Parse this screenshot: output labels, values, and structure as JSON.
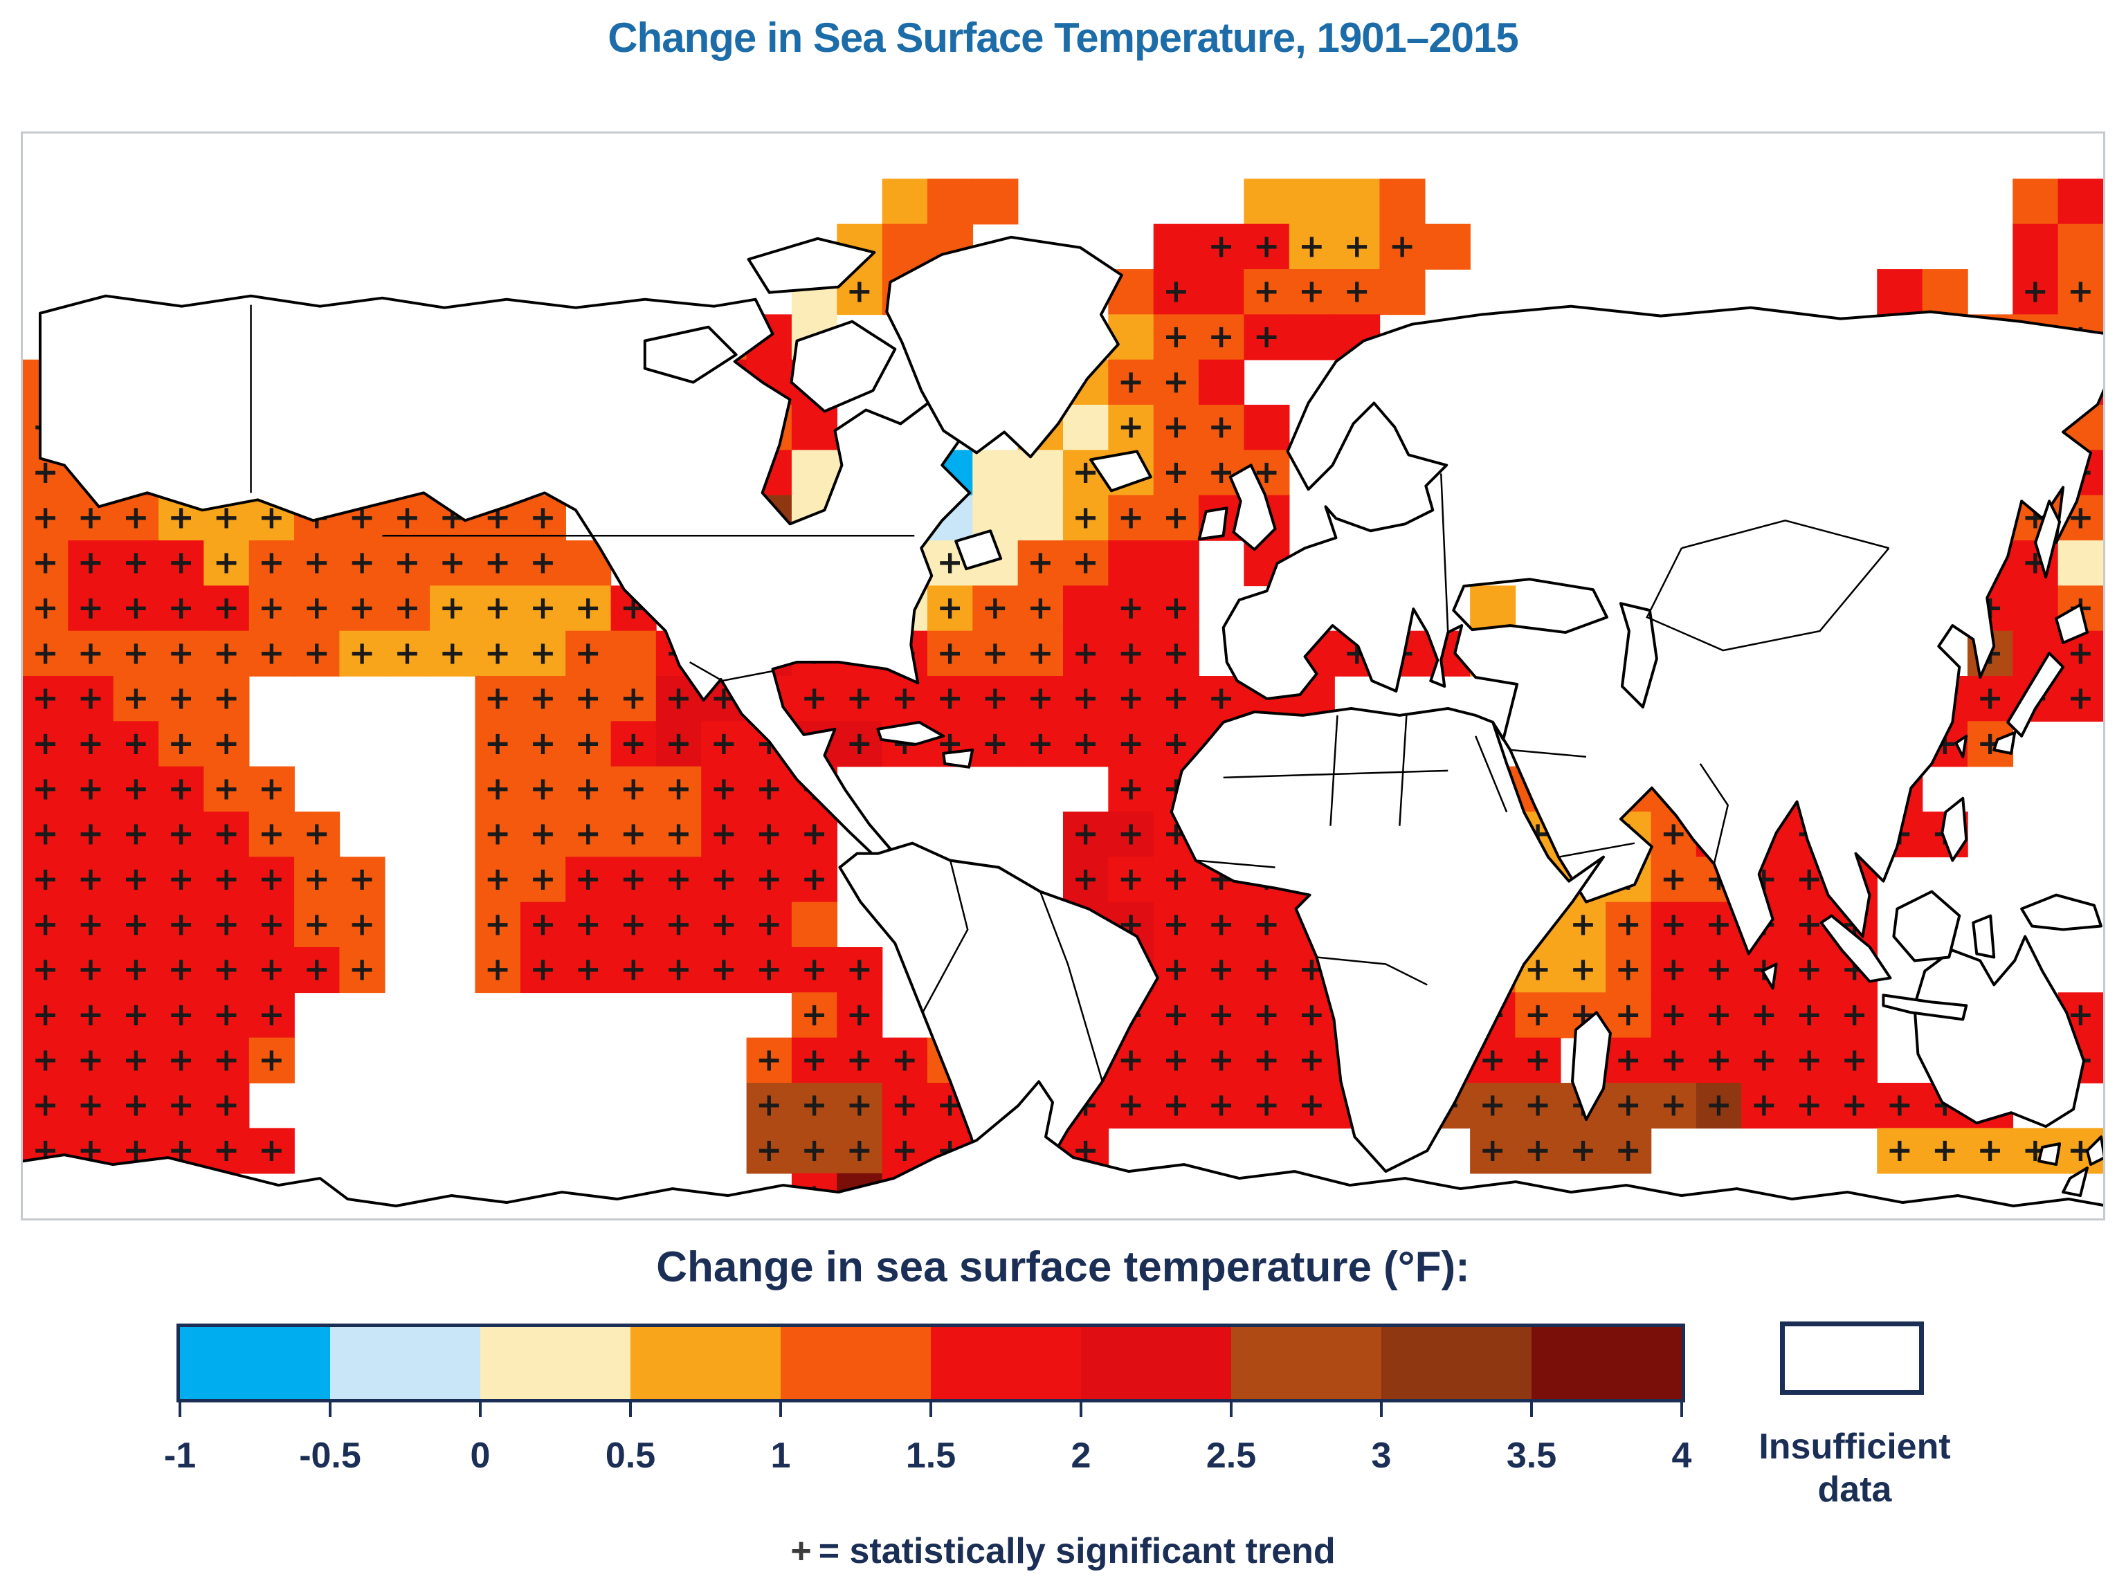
{
  "title": {
    "text": "Change in Sea Surface Temperature, 1901–2015",
    "color": "#1B6CA8"
  },
  "map": {
    "background": "#FFFFFF",
    "frame_color": "#C6CACE",
    "plus_symbol": "+",
    "plus_color": "#1A1A1A",
    "land_fill": "#FFFFFF",
    "land_stroke": "#000000",
    "grid": {
      "cols": 46,
      "rows": 24,
      "encoding": "digit 0-9 = temperature bin with plus mark (statistically significant); letters a-j = bin 0-9 without plus; dot = no data",
      "rows_data": [
        "..............................................",
        "...................dee.....ddde.............ef",
        "..................dee....f55334e............fe",
        ".................c3e....e5f444e..........fe.54",
        "...............efc......d445ff.............e44",
        "ee4.9..........6ff....dd44f..............fe.45",
        "444eff.........fef....3c344f...............44e",
        "4455555444......fccaacc33444............3344e5",
        "444333444444...98cbbbcc344ff..........43344444",
        "455534444444e..86bb22c44ff.f...............55c",
        "45555444433335..422c344f55......d..........5f4",
        "4444444333334e556555444555.ff55fd..........7f5",
        "55444.....44446655555555555ff....5...555555555",
        "55544.....44456556655555555577...5..55555554..",
        "555544....44444555......555577544444455555....",
        "5555544...44444555.....66555754433334555555...",
        "55555544..44555555.....655555543333344555.....",
        "55555544..4555555e.....665555554333455555.....",
        "55555554..455555555....665555555433455555.....",
        "555555...........45...5555555555544455555....5",
        "555554..........4555e.555555555555.555555....5",
        "55555...........7775555555555557777778555555..",
        "555555..........77755555........7777.....33333",
        "333c.............5954........................."
      ]
    },
    "land_paths": [
      "M 25 260 L 120 235 L 230 250 L 330 235 L 430 250 L 520 238 L 610 252 L 700 240 L 800 252 L 900 240 L 1000 250 L 1060 240 L 1085 290 L 1030 330 L 1070 360 L 1110 385 L 1095 450 L 1070 520 L 1110 565 L 1160 545 L 1185 480 L 1175 430 L 1220 400 L 1270 420 L 1310 390 L 1365 430 L 1330 480 L 1370 520 L 1330 560 L 1300 600 L 1315 640 L 1290 690 L 1285 740 L 1295 795 L 1250 775 L 1180 765 L 1120 765 L 1085 775 L 1100 830 L 1130 870 L 1175 862 L 1160 900 L 1190 950 L 1225 1000 L 1255 1035 L 1235 1048 L 1195 1010 L 1155 970 L 1120 935 L 1080 880 L 1040 840 L 1010 790 L 985 820 L 950 770 L 930 720 L 870 660 L 835 600 L 800 545 L 755 520 L 700 540 L 640 560 L 580 520 L 500 540 L 420 560 L 340 530 L 260 545 L 180 520 L 110 540 L 60 480 L 25 470 Z",
      "M 1255 215 L 1330 175 L 1430 150 L 1530 165 L 1590 205 L 1560 262 L 1585 305 L 1540 355 L 1498 420 L 1458 468 L 1420 432 L 1380 462 L 1332 430 L 1300 372 L 1272 302 L 1250 258 Z",
      "M 1050 182 L 1150 152 L 1232 172 L 1180 222 L 1080 230 Z",
      "M 900 300 L 992 280 L 1032 320 L 970 360 L 900 340 Z",
      "M 1120 300 L 1200 272 L 1262 312 L 1230 372 L 1160 402 L 1112 360 Z",
      "M 1545 472 L 1612 460 L 1632 497 L 1575 517 Z",
      "M 1747 497 L 1777 480 L 1797 522 L 1812 572 L 1782 602 L 1752 577 L 1762 532 Z",
      "M 1712 547 L 1742 542 L 1737 582 L 1702 587 Z",
      "M 1350 590 L 1400 575 L 1415 615 L 1365 630 Z",
      "M 1237 862 L 1297 852 L 1332 872 L 1292 884 L 1242 877 Z",
      "M 1332 897 L 1374 892 L 1369 917 L 1334 912 Z",
      "M 1757 792 L 1800 818 L 1848 812 L 1872 782 L 1855 757 L 1895 712 L 1932 742 L 1952 792 L 1987 807 L 1997 762 L 2012 688 L 2032 722 L 2047 762 L 2037 792 L 2057 800 L 2052 762 L 2062 722 L 2082 712 L 2072 752 L 2102 787 L 2162 797 L 2152 837 L 2142 877 L 2127 852 L 2152 892 L 2187 972 L 2222 1047 L 2262 1112 L 2332 1087 L 2357 1032 L 2312 992 L 2357 947 L 2392 987 L 2417 1022 L 2447 1057 L 2472 1122 L 2497 1187 L 2532 1137 L 2512 1072 L 2537 1012 L 2567 967 L 2582 1022 L 2612 1102 L 2662 1162 L 2672 1102 L 2652 1042 L 2692 1082 L 2712 1032 L 2732 947 L 2762 912 L 2792 852 L 2802 772 L 2772 742 L 2792 712 L 2822 732 L 2832 787 L 2852 742 L 2842 672 L 2872 612 L 2892 532 L 2922 557 L 2952 512 L 2942 592 L 2972 532 L 2992 462 L 2952 432 L 3002 392 L 3016 360 L 3016 290 L 2890 272 L 2760 258 L 2630 268 L 2500 252 L 2370 264 L 2240 250 L 2110 262 L 2010 276 L 1940 300 L 1900 330 L 1860 390 L 1830 460 L 1860 515 L 1895 480 L 1925 420 L 1955 390 L 1985 425 L 2005 465 L 2060 480 L 2030 510 L 2040 545 L 2000 565 L 1950 575 L 1900 557 L 1885 540 L 1900 585 L 1855 600 L 1815 622 L 1800 662 L 1760 675 L 1737 715 L 1742 765 Z M 2085 655 L 2180 645 L 2272 660 L 2292 700 L 2232 722 L 2152 712 L 2097 718 L 2070 690 Z M 2312 680 L 2354 690 L 2364 760 L 2344 830 L 2314 800 L 2324 720 Z",
      "M 2872 852 L 2902 802 L 2932 752 L 2952 772 L 2912 832 L 2892 872 Z",
      "M 2942 702 L 2977 682 L 2987 722 L 2952 737 Z",
      "M 2857 877 L 2882 867 L 2877 897 L 2852 892 Z",
      "M 2912 592 L 2932 532 L 2947 562 L 2927 642 Z",
      "M 2797 882 L 2812 872 L 2807 902 Z",
      "M 2517 1212 L 2537 1202 L 2532 1237 Z",
      "M 1737 852 L 1782 837 L 1852 842 L 1922 832 L 1992 842 L 2062 832 L 2102 842 L 2127 852 L 2147 912 L 2172 982 L 2207 1047 L 2237 1082 L 2287 1047 L 2242 1112 L 2172 1202 L 2122 1302 L 2072 1402 L 2032 1472 L 1972 1502 L 1927 1452 L 1907 1372 L 1897 1282 L 1872 1192 L 1842 1122 L 1862 1102 L 1812 1092 L 1752 1082 L 1697 1052 L 1662 982 L 1677 922 L 1712 882 Z",
      "M 2247 1297 L 2277 1272 L 2297 1302 L 2287 1382 L 2262 1427 L 2242 1372 Z",
      "M 1237 1042 L 1287 1027 L 1342 1052 L 1412 1062 L 1472 1097 L 1542 1122 L 1612 1162 L 1642 1222 L 1602 1292 L 1562 1372 L 1512 1442 L 1477 1502 L 1447 1472 L 1432 1512 L 1437 1532 L 1412 1547 L 1392 1522 L 1372 1452 L 1342 1372 L 1302 1272 L 1262 1172 L 1212 1112 L 1182 1062 L 1207 1042 Z",
      "M 2752 1212 L 2792 1182 L 2832 1197 L 2852 1232 L 2882 1197 L 2897 1162 L 2922 1212 L 2957 1272 L 2982 1342 L 2967 1412 L 2927 1437 L 2877 1417 L 2827 1432 L 2777 1402 L 2742 1332 L 2737 1262 Z",
      "M 2922 1467 L 2947 1462 L 2942 1492 L 2917 1487 Z",
      "M 2987 1472 L 3007 1452 L 3012 1482 L 2992 1492 Z",
      "M 2962 1512 L 2987 1497 L 2977 1537 L 2952 1532 Z",
      "M 2892 1122 L 2942 1102 L 2997 1117 L 3007 1147 L 2952 1152 L 2907 1147 Z",
      "M 2617 1132 L 2672 1177 L 2702 1222 L 2672 1227 L 2632 1182 L 2602 1142 Z",
      "M 2692 1247 L 2762 1257 L 2812 1262 L 2807 1282 L 2732 1272 L 2692 1262 Z",
      "M 2712 1122 L 2762 1097 L 2802 1132 L 2787 1192 L 2737 1197 L 2707 1162 Z",
      "M 2822 1142 L 2847 1132 L 2852 1192 L 2827 1187 Z",
      "M 2782 982 L 2807 962 L 2812 1022 L 2792 1052 L 2777 1012 Z",
      "M -6 1488 L 60 1478 L 130 1492 L 210 1482 L 290 1502 L 370 1522 L 430 1512 L 470 1542 L 540 1552 L 620 1537 L 700 1547 L 780 1532 L 860 1542 L 940 1527 L 1020 1537 L 1100 1522 L 1180 1532 L 1260 1512 L 1320 1482 L 1380 1457 L 1440 1407 L 1470 1372 L 1490 1402 L 1480 1452 L 1520 1482 L 1600 1502 L 1680 1492 L 1760 1512 L 1840 1502 L 1920 1522 L 2000 1512 L 2080 1527 L 2160 1517 L 2240 1532 L 2320 1522 L 2400 1537 L 2480 1527 L 2560 1542 L 2640 1532 L 2720 1547 L 2800 1537 L 2880 1552 L 2960 1542 L 3016 1552 L 3016 1584 L -6 1584 Z"
    ],
    "border_paths": [
      "M 520 582 L 1290 582",
      "M 330 248 L 330 520",
      "M 965 765 L 1012 792 L 1085 778",
      "M 1342 1052 L 1367 1152 L 1302 1272",
      "M 1472 1097 L 1512 1202 L 1562 1372",
      "M 1737 932 L 2062 922",
      "M 1902 842 L 1892 1002",
      "M 2002 842 L 1992 1002",
      "M 1697 1052 L 1812 1062",
      "M 1872 1192 L 1972 1202 L 2032 1232",
      "M 2102 872 L 2147 982",
      "M 2152 892 L 2262 902",
      "M 2222 1047 L 2332 1027",
      "M 2447 1057 L 2467 972 L 2427 912",
      "M 2400 600 L 2550 560 L 2700 600",
      "M 2400 600 L 2350 700 L 2460 748 L 2600 720 L 2700 600",
      "M 2052 492 L 2062 722"
    ]
  },
  "legend": {
    "heading": "Change in sea surface temperature (°F):",
    "heading_color": "#1B2E55",
    "bin_colors": [
      "#00AEEF",
      "#C9E6F8",
      "#FBECB8",
      "#F9A51B",
      "#F4590E",
      "#EE1111",
      "#E00D12",
      "#B04A15",
      "#8E3711",
      "#7A0F0A"
    ],
    "tick_labels": [
      "-1",
      "-0.5",
      "0",
      "0.5",
      "1",
      "1.5",
      "2",
      "2.5",
      "3",
      "3.5",
      "4"
    ],
    "insufficient": {
      "line1": "Insufficient",
      "line2": "data"
    }
  },
  "footnote": {
    "symbol": "+",
    "text": "= statistically significant trend"
  }
}
